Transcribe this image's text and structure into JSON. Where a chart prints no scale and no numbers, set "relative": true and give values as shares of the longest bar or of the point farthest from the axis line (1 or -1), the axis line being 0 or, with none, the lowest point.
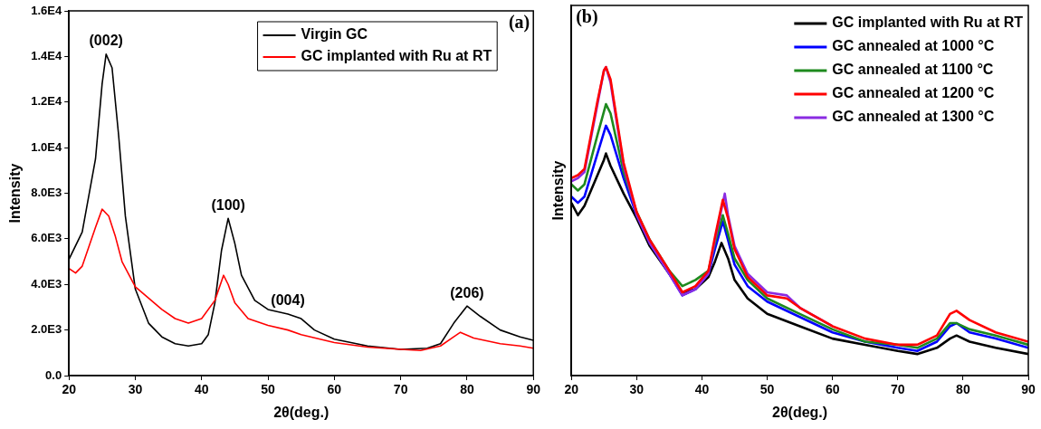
{
  "chart_data": [
    {
      "type": "line",
      "xlabel": "2θ(deg.)",
      "ylabel": "Intensity",
      "xlim": [
        20,
        90
      ],
      "xticks": [
        20,
        30,
        40,
        50,
        60,
        70,
        80,
        90
      ],
      "ylim": [
        0,
        16000
      ],
      "yticks": [
        {
          "value": 0,
          "label": "0.0"
        },
        {
          "value": 2000,
          "label": "2.0E3"
        },
        {
          "value": 4000,
          "label": "4.0E3"
        },
        {
          "value": 6000,
          "label": "6.0E3"
        },
        {
          "value": 8000,
          "label": "8.0E3"
        },
        {
          "value": 10000,
          "label": "1.0E4"
        },
        {
          "value": 12000,
          "label": "1.2E4"
        },
        {
          "value": 14000,
          "label": "1.4E4"
        },
        {
          "value": 16000,
          "label": "1.6E4"
        }
      ],
      "grid": false,
      "legend": "top right",
      "annotations": [
        "(a)",
        {
          "text": "(002)",
          "x": 25.6,
          "y": 14100
        },
        {
          "text": "(100)",
          "x": 44,
          "y": 6900
        },
        {
          "text": "(004)",
          "x": 53,
          "y": 2700
        },
        {
          "text": "(206)",
          "x": 80,
          "y": 3050
        }
      ],
      "series": [
        {
          "name": "Virgin GC",
          "color": "#000000",
          "x": [
            20,
            22,
            24,
            25,
            25.6,
            26.5,
            27.5,
            28.5,
            30,
            32,
            34,
            36,
            38,
            40,
            41,
            42,
            43,
            44,
            45,
            46,
            48,
            50,
            53,
            55,
            57,
            60,
            65,
            70,
            74,
            76,
            78,
            80,
            82,
            85,
            88,
            90
          ],
          "values": [
            5100,
            6300,
            9500,
            12800,
            14100,
            13500,
            10500,
            7000,
            3800,
            2300,
            1700,
            1400,
            1300,
            1400,
            1800,
            3200,
            5500,
            6900,
            5800,
            4400,
            3300,
            2900,
            2700,
            2500,
            2000,
            1600,
            1300,
            1150,
            1200,
            1400,
            2300,
            3050,
            2600,
            2000,
            1700,
            1550
          ]
        },
        {
          "name": "GC implanted with Ru at RT",
          "color": "#ff0000",
          "x": [
            20,
            21,
            22,
            24,
            25,
            26,
            27,
            28,
            30,
            32,
            34,
            36,
            38,
            40,
            42,
            43.3,
            44,
            45,
            47,
            50,
            53,
            55,
            60,
            65,
            70,
            73,
            76,
            78,
            79,
            81,
            85,
            88,
            90
          ],
          "values": [
            4700,
            4500,
            4800,
            6500,
            7300,
            7000,
            6100,
            5000,
            3900,
            3400,
            2900,
            2500,
            2300,
            2500,
            3300,
            4400,
            4000,
            3200,
            2500,
            2200,
            2000,
            1800,
            1450,
            1250,
            1150,
            1100,
            1300,
            1700,
            1900,
            1650,
            1400,
            1300,
            1200
          ]
        }
      ]
    },
    {
      "type": "line",
      "xlabel": "2θ(deg.)",
      "ylabel": "Intensity",
      "xlim": [
        20,
        90
      ],
      "xticks": [
        20,
        30,
        40,
        50,
        60,
        70,
        80,
        90
      ],
      "relative": true,
      "tick_labels": "x",
      "grid": false,
      "legend": "top right",
      "annotations": [
        "(b)"
      ],
      "series": [
        {
          "name": "GC implanted with Ru at RT",
          "color": "#000000",
          "x": [
            20,
            21,
            22,
            24,
            25,
            25.3,
            26,
            28,
            30,
            32,
            35,
            37,
            39,
            41,
            42,
            43,
            44,
            45,
            47,
            50,
            55,
            60,
            65,
            70,
            73,
            76,
            78,
            79,
            81,
            85,
            90
          ],
          "values": [
            0.56,
            0.52,
            0.55,
            0.65,
            0.7,
            0.72,
            0.68,
            0.59,
            0.51,
            0.42,
            0.33,
            0.27,
            0.28,
            0.32,
            0.37,
            0.43,
            0.38,
            0.31,
            0.25,
            0.2,
            0.16,
            0.12,
            0.1,
            0.08,
            0.07,
            0.09,
            0.12,
            0.13,
            0.11,
            0.09,
            0.07
          ]
        },
        {
          "name": "GC annealed at 1000 °C",
          "color": "#0000ff",
          "x": [
            20,
            21,
            22,
            24,
            25.3,
            26,
            28,
            30,
            32,
            35,
            37,
            39,
            41,
            42,
            43.2,
            44,
            45,
            47,
            50,
            55,
            60,
            65,
            70,
            73,
            76,
            78,
            79,
            81,
            85,
            90
          ],
          "values": [
            0.58,
            0.56,
            0.58,
            0.72,
            0.81,
            0.78,
            0.64,
            0.52,
            0.43,
            0.33,
            0.26,
            0.28,
            0.33,
            0.41,
            0.5,
            0.44,
            0.36,
            0.29,
            0.24,
            0.19,
            0.14,
            0.11,
            0.09,
            0.08,
            0.11,
            0.16,
            0.17,
            0.14,
            0.12,
            0.09
          ]
        },
        {
          "name": "GC annealed at 1100 °C",
          "color": "#1e8a1e",
          "x": [
            20,
            21,
            22,
            24,
            25.3,
            26,
            28,
            30,
            32,
            35,
            37,
            39,
            41,
            42,
            43.2,
            44,
            45,
            47,
            50,
            55,
            60,
            65,
            70,
            73,
            76,
            78,
            79,
            81,
            85,
            90
          ],
          "values": [
            0.62,
            0.6,
            0.62,
            0.78,
            0.88,
            0.85,
            0.66,
            0.53,
            0.44,
            0.34,
            0.29,
            0.31,
            0.34,
            0.43,
            0.52,
            0.46,
            0.38,
            0.31,
            0.25,
            0.2,
            0.15,
            0.11,
            0.1,
            0.09,
            0.12,
            0.17,
            0.17,
            0.15,
            0.13,
            0.1
          ]
        },
        {
          "name": "GC annealed at 1200 °C",
          "color": "#ff0000",
          "x": [
            20,
            21,
            22,
            24,
            25,
            25.3,
            26,
            28,
            30,
            32,
            35,
            37,
            39,
            41,
            42,
            43.2,
            44,
            45,
            47,
            50,
            53,
            55,
            60,
            65,
            70,
            73,
            76,
            78,
            79,
            81,
            85,
            90
          ],
          "values": [
            0.64,
            0.65,
            0.67,
            0.89,
            0.99,
            1.0,
            0.96,
            0.69,
            0.53,
            0.44,
            0.34,
            0.27,
            0.29,
            0.34,
            0.45,
            0.57,
            0.51,
            0.41,
            0.32,
            0.26,
            0.25,
            0.22,
            0.16,
            0.12,
            0.1,
            0.1,
            0.13,
            0.2,
            0.21,
            0.18,
            0.14,
            0.11
          ]
        },
        {
          "name": "GC annealed at 1300 °C",
          "color": "#8a2be2",
          "x": [
            20,
            21,
            22,
            24,
            25,
            25.3,
            26,
            28,
            30,
            32,
            35,
            37,
            39,
            41,
            42,
            43.5,
            44,
            45,
            47,
            50,
            53,
            55,
            60
          ],
          "values": [
            0.63,
            0.64,
            0.66,
            0.88,
            0.99,
            1.0,
            0.95,
            0.68,
            0.52,
            0.43,
            0.33,
            0.26,
            0.28,
            0.33,
            0.44,
            0.59,
            0.52,
            0.42,
            0.33,
            0.27,
            0.26,
            0.22,
            0.16
          ]
        }
      ]
    }
  ]
}
